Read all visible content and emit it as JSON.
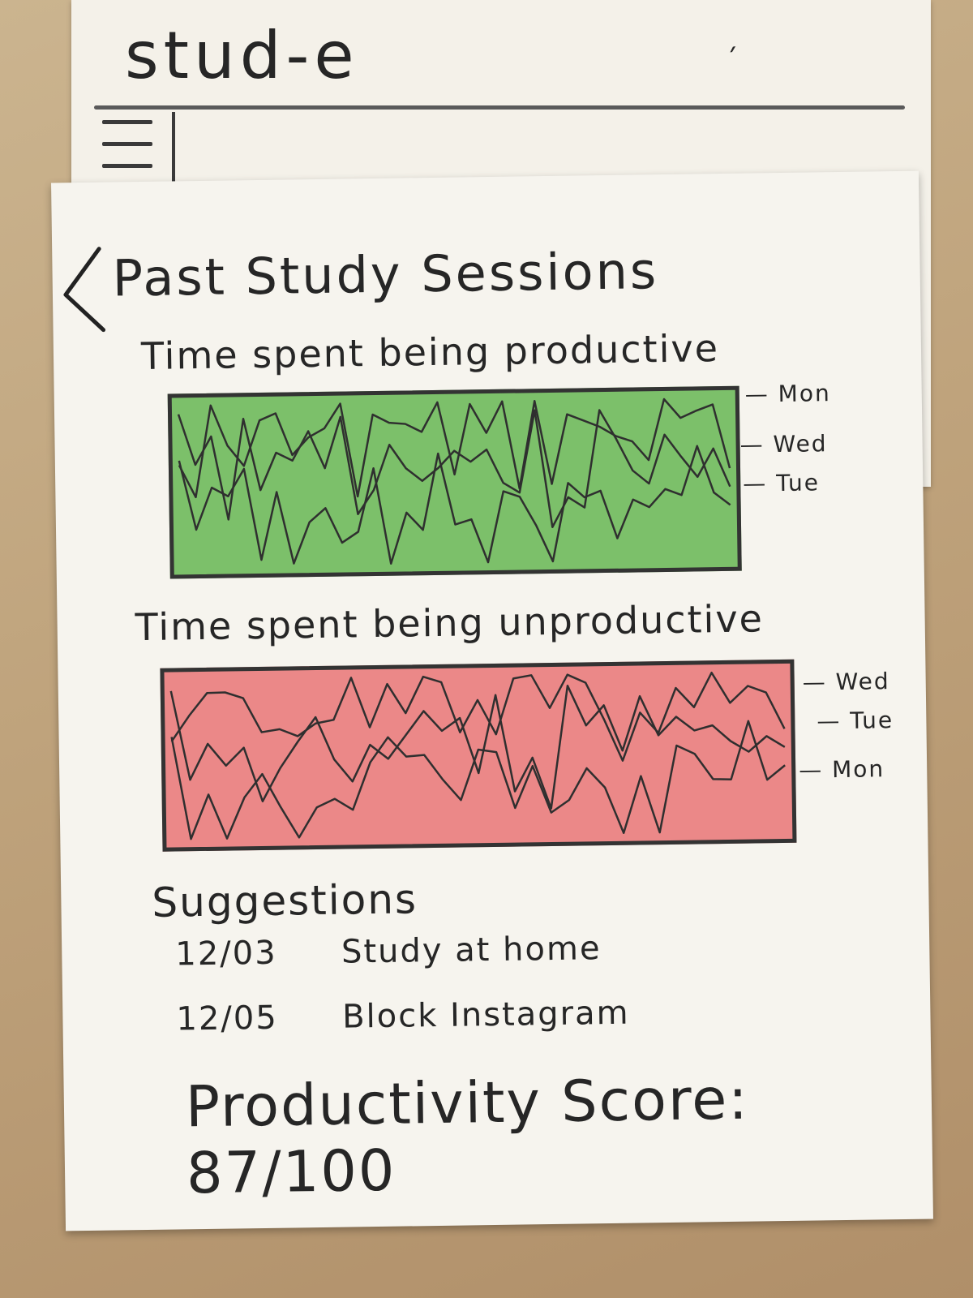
{
  "app": {
    "title": "stud-e"
  },
  "page": {
    "title": "Past Study Sessions"
  },
  "charts": [
    {
      "title": "Time spent being productive",
      "color": "#7cc06a",
      "legend": [
        "Mon",
        "Wed",
        "Tue"
      ]
    },
    {
      "title": "Time spent being unproductive",
      "color": "#eb8888",
      "legend": [
        "Wed",
        "Tue",
        "Mon"
      ]
    }
  ],
  "suggestions": {
    "heading": "Suggestions",
    "items": [
      {
        "date": "12/03",
        "text": "Study at home"
      },
      {
        "date": "12/05",
        "text": "Block Instagram"
      }
    ]
  },
  "score": {
    "label": "Productivity Score:",
    "value": "87/100"
  },
  "icons": {
    "menu": "hamburger-menu-icon",
    "back": "chevron-left-icon"
  }
}
